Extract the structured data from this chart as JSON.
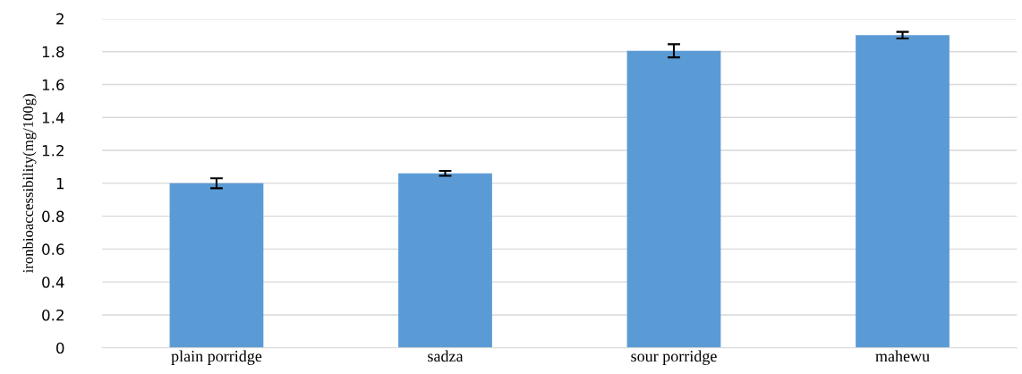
{
  "chart_data": {
    "type": "bar",
    "ylabel": "ironbioaccessibility(mg/100g)",
    "categories": [
      "plain porridge",
      "sadza",
      "sour porridge",
      "mahewu"
    ],
    "values": [
      1.0,
      1.06,
      1.805,
      1.9
    ],
    "errors": [
      0.03,
      0.015,
      0.04,
      0.02
    ],
    "color": "#5b9bd5",
    "ylim": [
      0,
      2
    ],
    "yticks": [
      0,
      0.2,
      0.4,
      0.6,
      0.8,
      1,
      1.2,
      1.4,
      1.6,
      1.8,
      2
    ],
    "grid": "y"
  }
}
